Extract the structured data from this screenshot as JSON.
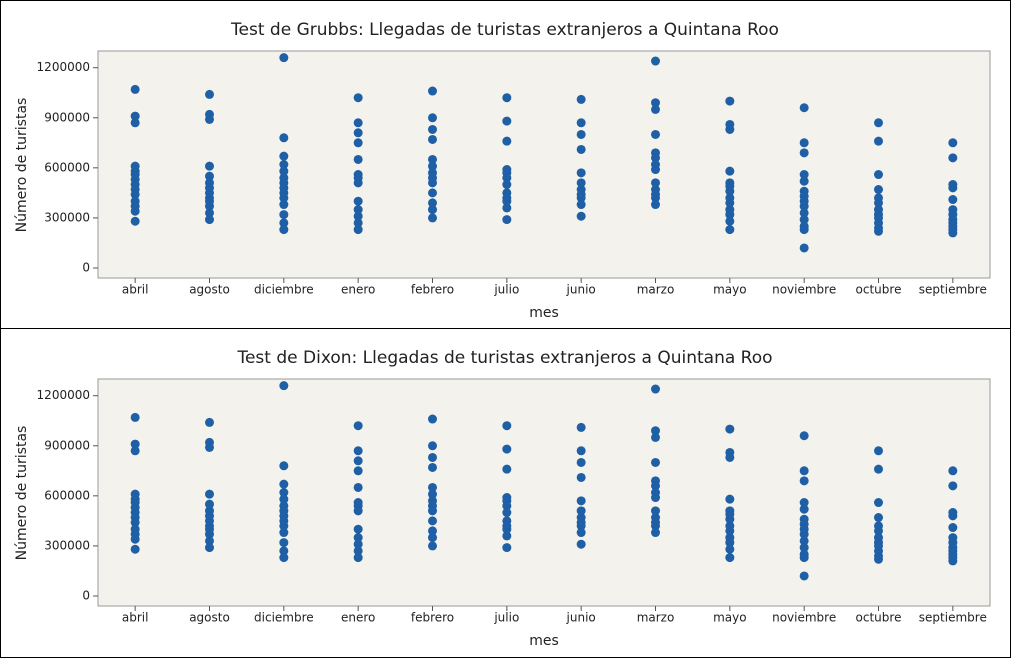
{
  "chart_data": [
    {
      "type": "strip",
      "title": "Test de Grubbs: Llegadas de turistas extranjeros a Quintana Roo",
      "x_label": "mes",
      "y_label": "Número de turistas",
      "color": "#1f5fa6",
      "categories": [
        "abril",
        "agosto",
        "diciembre",
        "enero",
        "febrero",
        "julio",
        "junio",
        "marzo",
        "mayo",
        "noviembre",
        "octubre",
        "septiembre"
      ],
      "values": [
        [
          1070000,
          910000,
          870000,
          610000,
          580000,
          560000,
          530000,
          500000,
          470000,
          440000,
          400000,
          370000,
          340000,
          280000
        ],
        [
          1040000,
          920000,
          890000,
          610000,
          550000,
          510000,
          480000,
          450000,
          420000,
          400000,
          370000,
          330000,
          290000
        ],
        [
          1260000,
          780000,
          670000,
          620000,
          580000,
          540000,
          510000,
          480000,
          450000,
          420000,
          380000,
          320000,
          270000,
          230000
        ],
        [
          1020000,
          870000,
          810000,
          750000,
          650000,
          560000,
          540000,
          510000,
          400000,
          350000,
          310000,
          270000,
          230000
        ],
        [
          1060000,
          900000,
          830000,
          770000,
          650000,
          610000,
          570000,
          540000,
          510000,
          450000,
          390000,
          350000,
          300000
        ],
        [
          1020000,
          880000,
          760000,
          590000,
          570000,
          540000,
          500000,
          450000,
          420000,
          400000,
          360000,
          290000
        ],
        [
          1010000,
          870000,
          800000,
          710000,
          570000,
          510000,
          470000,
          440000,
          420000,
          380000,
          310000
        ],
        [
          1240000,
          990000,
          950000,
          800000,
          690000,
          660000,
          620000,
          590000,
          510000,
          470000,
          440000,
          420000,
          380000
        ],
        [
          1000000,
          860000,
          830000,
          580000,
          510000,
          490000,
          460000,
          420000,
          390000,
          350000,
          320000,
          280000,
          230000
        ],
        [
          960000,
          750000,
          690000,
          560000,
          520000,
          460000,
          430000,
          400000,
          370000,
          330000,
          290000,
          250000,
          230000,
          120000
        ],
        [
          870000,
          760000,
          560000,
          470000,
          420000,
          390000,
          350000,
          320000,
          300000,
          270000,
          240000,
          220000
        ],
        [
          750000,
          660000,
          500000,
          480000,
          410000,
          350000,
          320000,
          290000,
          270000,
          250000,
          230000,
          210000
        ]
      ],
      "ylim": [
        -60000,
        1300000
      ],
      "yticks": [
        0,
        300000,
        600000,
        900000,
        1200000
      ]
    },
    {
      "type": "strip",
      "title": "Test de Dixon: Llegadas de turistas extranjeros a Quintana Roo",
      "x_label": "mes",
      "y_label": "Número de turistas",
      "color": "#1f5fa6",
      "categories": [
        "abril",
        "agosto",
        "diciembre",
        "enero",
        "febrero",
        "julio",
        "junio",
        "marzo",
        "mayo",
        "noviembre",
        "octubre",
        "septiembre"
      ],
      "values": [
        [
          1070000,
          910000,
          870000,
          610000,
          580000,
          560000,
          530000,
          500000,
          470000,
          440000,
          400000,
          370000,
          340000,
          280000
        ],
        [
          1040000,
          920000,
          890000,
          610000,
          550000,
          510000,
          480000,
          450000,
          420000,
          400000,
          370000,
          330000,
          290000
        ],
        [
          1260000,
          780000,
          670000,
          620000,
          580000,
          540000,
          510000,
          480000,
          450000,
          420000,
          380000,
          320000,
          270000,
          230000
        ],
        [
          1020000,
          870000,
          810000,
          750000,
          650000,
          560000,
          540000,
          510000,
          400000,
          350000,
          310000,
          270000,
          230000
        ],
        [
          1060000,
          900000,
          830000,
          770000,
          650000,
          610000,
          570000,
          540000,
          510000,
          450000,
          390000,
          350000,
          300000
        ],
        [
          1020000,
          880000,
          760000,
          590000,
          570000,
          540000,
          500000,
          450000,
          420000,
          400000,
          360000,
          290000
        ],
        [
          1010000,
          870000,
          800000,
          710000,
          570000,
          510000,
          470000,
          440000,
          420000,
          380000,
          310000
        ],
        [
          1240000,
          990000,
          950000,
          800000,
          690000,
          660000,
          620000,
          590000,
          510000,
          470000,
          440000,
          420000,
          380000
        ],
        [
          1000000,
          860000,
          830000,
          580000,
          510000,
          490000,
          460000,
          420000,
          390000,
          350000,
          320000,
          280000,
          230000
        ],
        [
          960000,
          750000,
          690000,
          560000,
          520000,
          460000,
          430000,
          400000,
          370000,
          330000,
          290000,
          250000,
          230000,
          120000
        ],
        [
          870000,
          760000,
          560000,
          470000,
          420000,
          390000,
          350000,
          320000,
          300000,
          270000,
          240000,
          220000
        ],
        [
          750000,
          660000,
          500000,
          480000,
          410000,
          350000,
          320000,
          290000,
          270000,
          250000,
          230000,
          210000
        ]
      ],
      "ylim": [
        -60000,
        1300000
      ],
      "yticks": [
        0,
        300000,
        600000,
        900000,
        1200000
      ]
    }
  ]
}
